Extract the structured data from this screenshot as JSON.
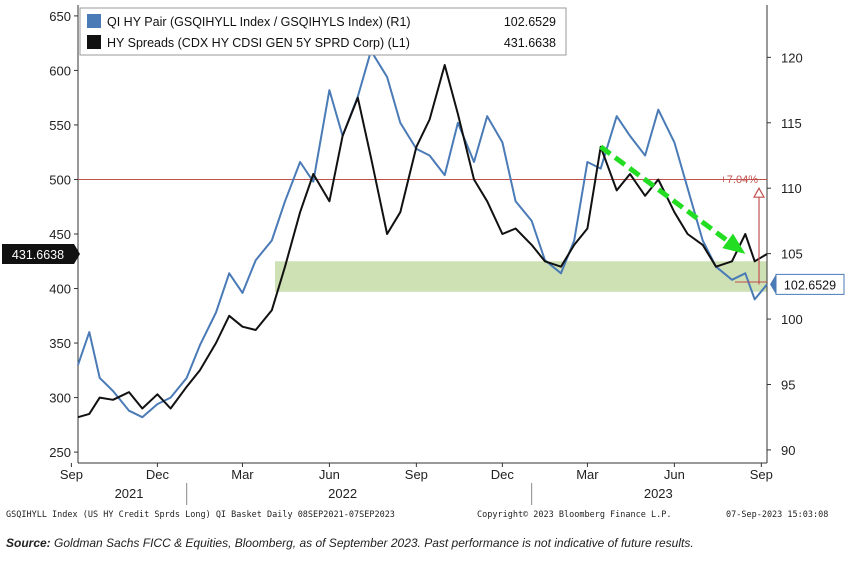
{
  "chart_data": {
    "type": "line",
    "x_range": [
      "2021-09-08",
      "2023-09-07"
    ],
    "y_left_range": [
      240,
      660
    ],
    "y_right_range": [
      89,
      124
    ],
    "y_left_ticks": [
      250,
      300,
      350,
      400,
      450,
      500,
      550,
      600,
      650
    ],
    "y_right_ticks": [
      90,
      95,
      100,
      105,
      110,
      115,
      120
    ],
    "x_month_labels": [
      {
        "date": "2021-09-01",
        "label": "Sep"
      },
      {
        "date": "2021-12-01",
        "label": "Dec"
      },
      {
        "date": "2022-03-01",
        "label": "Mar"
      },
      {
        "date": "2022-06-01",
        "label": "Jun"
      },
      {
        "date": "2022-09-01",
        "label": "Sep"
      },
      {
        "date": "2022-12-01",
        "label": "Dec"
      },
      {
        "date": "2023-03-01",
        "label": "Mar"
      },
      {
        "date": "2023-06-01",
        "label": "Jun"
      },
      {
        "date": "2023-09-01",
        "label": "Sep"
      }
    ],
    "x_year_labels": [
      {
        "date": "2021-11-01",
        "label": "2021"
      },
      {
        "date": "2022-06-15",
        "label": "2022"
      },
      {
        "date": "2023-05-15",
        "label": "2023"
      }
    ],
    "series": [
      {
        "name": "QI HY Pair (GSQIHYLL Index / GSQIHYLS Index) (R1)",
        "last_value": "102.6529",
        "axis": "right",
        "color": "#4a7bb7",
        "points": [
          [
            "2021-09-08",
            96.5
          ],
          [
            "2021-09-20",
            99.0
          ],
          [
            "2021-10-01",
            95.5
          ],
          [
            "2021-10-15",
            94.5
          ],
          [
            "2021-11-01",
            93.0
          ],
          [
            "2021-11-15",
            92.5
          ],
          [
            "2021-12-01",
            93.5
          ],
          [
            "2021-12-15",
            94.0
          ],
          [
            "2022-01-01",
            95.5
          ],
          [
            "2022-01-15",
            98.0
          ],
          [
            "2022-02-01",
            100.5
          ],
          [
            "2022-02-15",
            103.5
          ],
          [
            "2022-03-01",
            102.0
          ],
          [
            "2022-03-15",
            104.5
          ],
          [
            "2022-04-01",
            106.0
          ],
          [
            "2022-04-15",
            109.0
          ],
          [
            "2022-05-01",
            112.0
          ],
          [
            "2022-05-15",
            110.5
          ],
          [
            "2022-06-01",
            117.5
          ],
          [
            "2022-06-15",
            114.0
          ],
          [
            "2022-07-01",
            117.0
          ],
          [
            "2022-07-15",
            120.5
          ],
          [
            "2022-08-01",
            118.5
          ],
          [
            "2022-08-15",
            115.0
          ],
          [
            "2022-09-01",
            113.0
          ],
          [
            "2022-09-15",
            112.5
          ],
          [
            "2022-10-01",
            111.0
          ],
          [
            "2022-10-15",
            115.0
          ],
          [
            "2022-11-01",
            112.0
          ],
          [
            "2022-11-15",
            115.5
          ],
          [
            "2022-12-01",
            113.5
          ],
          [
            "2022-12-15",
            109.0
          ],
          [
            "2023-01-01",
            107.5
          ],
          [
            "2023-01-15",
            104.5
          ],
          [
            "2023-02-01",
            103.5
          ],
          [
            "2023-02-15",
            106.0
          ],
          [
            "2023-03-01",
            112.0
          ],
          [
            "2023-03-15",
            111.5
          ],
          [
            "2023-04-01",
            115.5
          ],
          [
            "2023-04-15",
            114.0
          ],
          [
            "2023-05-01",
            112.5
          ],
          [
            "2023-05-15",
            116.0
          ],
          [
            "2023-06-01",
            113.5
          ],
          [
            "2023-06-15",
            110.0
          ],
          [
            "2023-07-01",
            106.0
          ],
          [
            "2023-07-15",
            104.0
          ],
          [
            "2023-08-01",
            103.0
          ],
          [
            "2023-08-15",
            103.5
          ],
          [
            "2023-08-25",
            101.5
          ],
          [
            "2023-09-07",
            102.65
          ]
        ]
      },
      {
        "name": "HY Spreads (CDX HY CDSI GEN 5Y SPRD Corp) (L1)",
        "last_value": "431.6638",
        "axis": "left",
        "color": "#111111",
        "points": [
          [
            "2021-09-08",
            282
          ],
          [
            "2021-09-20",
            285
          ],
          [
            "2021-10-01",
            300
          ],
          [
            "2021-10-15",
            298
          ],
          [
            "2021-11-01",
            305
          ],
          [
            "2021-11-15",
            290
          ],
          [
            "2021-12-01",
            303
          ],
          [
            "2021-12-15",
            290
          ],
          [
            "2022-01-01",
            310
          ],
          [
            "2022-01-15",
            325
          ],
          [
            "2022-02-01",
            350
          ],
          [
            "2022-02-15",
            375
          ],
          [
            "2022-03-01",
            365
          ],
          [
            "2022-03-15",
            362
          ],
          [
            "2022-04-01",
            380
          ],
          [
            "2022-04-15",
            420
          ],
          [
            "2022-05-01",
            470
          ],
          [
            "2022-05-15",
            505
          ],
          [
            "2022-06-01",
            480
          ],
          [
            "2022-06-15",
            540
          ],
          [
            "2022-07-01",
            575
          ],
          [
            "2022-07-15",
            520
          ],
          [
            "2022-08-01",
            450
          ],
          [
            "2022-08-15",
            470
          ],
          [
            "2022-09-01",
            530
          ],
          [
            "2022-09-15",
            555
          ],
          [
            "2022-10-01",
            605
          ],
          [
            "2022-10-15",
            560
          ],
          [
            "2022-11-01",
            500
          ],
          [
            "2022-11-15",
            480
          ],
          [
            "2022-12-01",
            450
          ],
          [
            "2022-12-15",
            455
          ],
          [
            "2023-01-01",
            440
          ],
          [
            "2023-01-15",
            425
          ],
          [
            "2023-02-01",
            420
          ],
          [
            "2023-02-15",
            440
          ],
          [
            "2023-03-01",
            455
          ],
          [
            "2023-03-15",
            530
          ],
          [
            "2023-04-01",
            490
          ],
          [
            "2023-04-15",
            505
          ],
          [
            "2023-05-01",
            485
          ],
          [
            "2023-05-15",
            500
          ],
          [
            "2023-06-01",
            470
          ],
          [
            "2023-06-15",
            450
          ],
          [
            "2023-07-01",
            440
          ],
          [
            "2023-07-15",
            420
          ],
          [
            "2023-08-01",
            425
          ],
          [
            "2023-08-15",
            450
          ],
          [
            "2023-08-25",
            425
          ],
          [
            "2023-09-07",
            431.66
          ]
        ]
      }
    ],
    "reference_line": {
      "axis": "left",
      "value": 500,
      "color": "#c0504d"
    },
    "shaded_band": {
      "axis": "left",
      "from": 397,
      "to": 425,
      "color": "#c5dca8"
    },
    "trend_arrow": {
      "axis": "left",
      "from": [
        "2023-03-15",
        530
      ],
      "to": [
        "2023-08-10",
        435
      ],
      "color": "#22dd22"
    },
    "change_annotation": {
      "label": "+7.04%",
      "date": "2023-09-07",
      "from_right": 102.65,
      "to_right": 110.0,
      "color": "#c0504d"
    },
    "last_value_tags": {
      "left": "431.6638",
      "right": "102.6529"
    }
  },
  "footer": {
    "left": "GSQIHYLL Index (US HY Credit Sprds Long) QI Basket  Daily 08SEP2021-07SEP2023",
    "center": "Copyright© 2023 Bloomberg Finance L.P.",
    "right": "07-Sep-2023 15:03:08"
  },
  "source": {
    "label": "Source:",
    "text": " Goldman Sachs FICC & Equities, Bloomberg, as of  September 2023. Past performance is not indicative of future results."
  }
}
